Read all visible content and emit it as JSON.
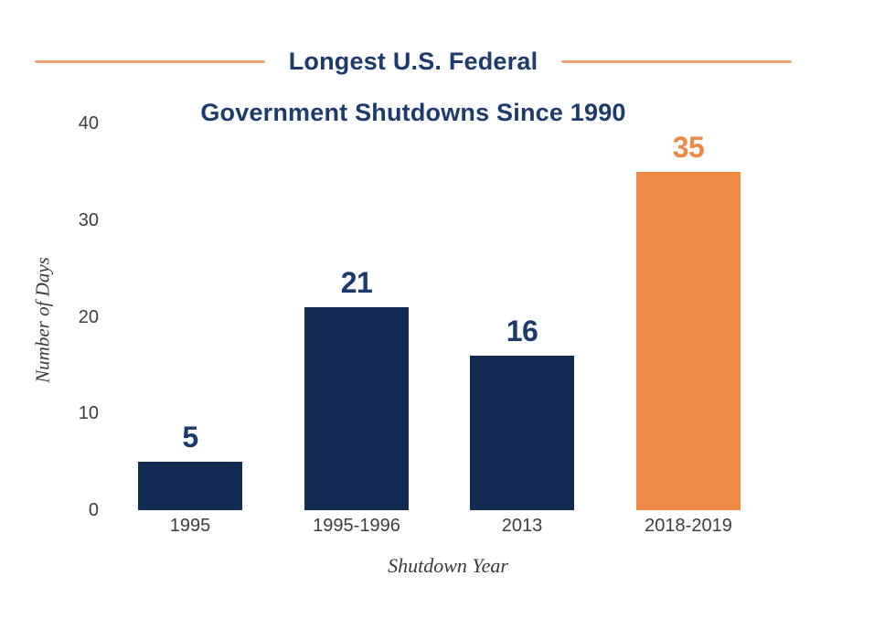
{
  "page": {
    "background": "#ffffff"
  },
  "title": {
    "line1": "Longest U.S. Federal",
    "line2": "Government Shutdowns Since 1990",
    "color": "#1c3a6b",
    "rule_color": "#efa273"
  },
  "chart_data": {
    "type": "bar",
    "title": "Longest U.S. Federal Government Shutdowns Since 1990",
    "categories": [
      "1995",
      "1995-1996",
      "2013",
      "2018-2019"
    ],
    "values": [
      5,
      21,
      16,
      35
    ],
    "value_labels": [
      "5",
      "21",
      "16",
      "35"
    ],
    "xlabel": "Shutdown Year",
    "ylabel": "Number of Days",
    "ylim": [
      0,
      40
    ],
    "yticks": [
      0,
      10,
      20,
      30,
      40
    ],
    "grid": false,
    "legend": "none",
    "bar_color": "#122b52",
    "highlight_index": 3,
    "highlight_color": "#ee8946",
    "value_label_color": "#1b3a6b",
    "highlight_value_label_color": "#ee8946",
    "tick_label_color": "#3d3d3d",
    "axis_title_color": "#3a3a3a"
  }
}
